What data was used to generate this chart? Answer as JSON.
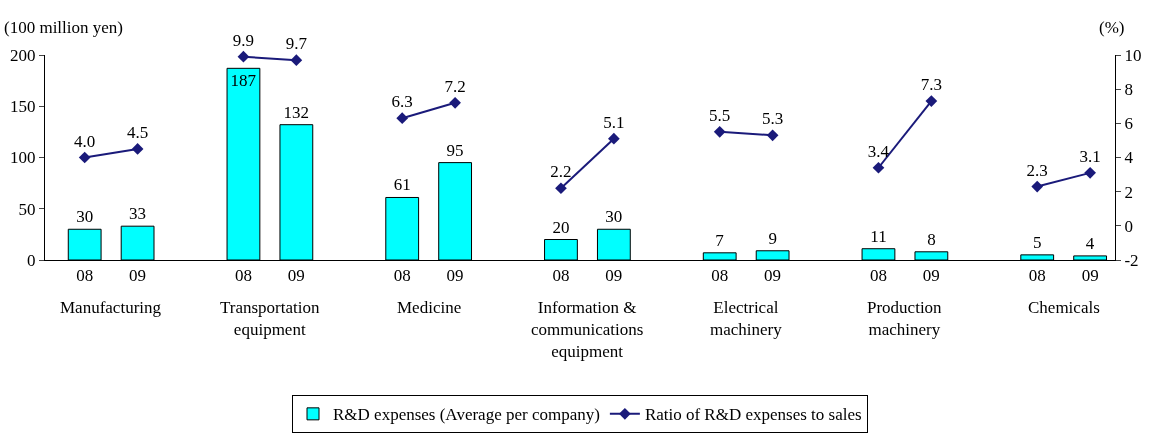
{
  "chart_data": {
    "type": "bar",
    "ylabel": "(100 million yen)",
    "y2label": "(%)",
    "categories": [
      "08",
      "09",
      null,
      "08",
      "09",
      null,
      "08",
      "09",
      null,
      "08",
      "09",
      null,
      "08",
      "09",
      null,
      "08",
      "09",
      null,
      "08",
      "09"
    ],
    "series": [
      {
        "name": "R&D expenses (Average per company)",
        "color": "#00ffff",
        "values": [
          30,
          33,
          null,
          187,
          132,
          null,
          61,
          95,
          null,
          20,
          30,
          null,
          7,
          9,
          null,
          11,
          8,
          null,
          5,
          4
        ]
      },
      {
        "name": "Ratio of R&D expenses to sales",
        "type": "line",
        "axis": "y2",
        "color": "#1a1a7a",
        "marker": "diamond",
        "values": [
          4.0,
          4.5,
          null,
          9.9,
          9.7,
          null,
          6.3,
          7.2,
          null,
          2.2,
          5.1,
          null,
          5.5,
          5.3,
          null,
          3.4,
          7.3,
          null,
          2.3,
          3.1
        ],
        "value_labels": [
          "4.0",
          "4.5",
          null,
          "9.9",
          "9.7",
          null,
          "6.3",
          "7.2",
          null,
          "2.2",
          "5.1",
          null,
          "5.5",
          "5.3",
          null,
          "3.4",
          "7.3",
          null,
          "2.3",
          "3.1"
        ]
      }
    ],
    "data_labels": true,
    "ylim": [
      0,
      200
    ],
    "yticks": [
      0,
      50,
      100,
      150,
      200
    ],
    "y2lim": [
      -2,
      10
    ],
    "y2ticks": [
      -2,
      0,
      2,
      4,
      6,
      8,
      10
    ],
    "annotations": [
      "Manufacturing",
      "Transportation equipment",
      "Medicine",
      "Information & communications equipment",
      "Electrical machinery",
      "Production machinery",
      "Chemicals"
    ],
    "grid": false,
    "legend": "bottom"
  }
}
